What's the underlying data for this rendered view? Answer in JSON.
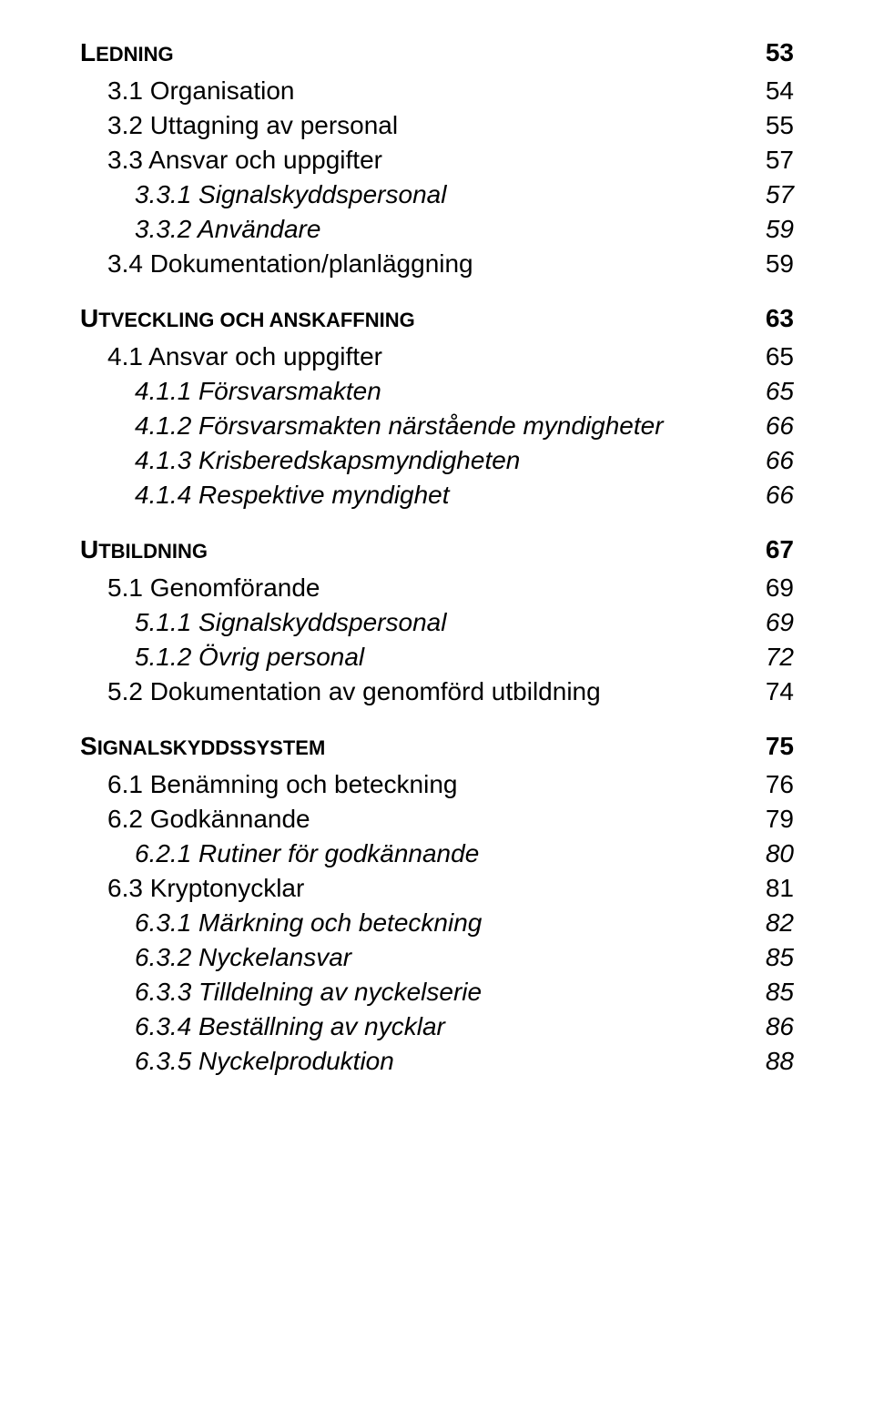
{
  "colors": {
    "text": "#000000",
    "background": "#ffffff"
  },
  "typography": {
    "font_family": "Arial",
    "section_size_pt": 21,
    "sub_size_pt": 21,
    "subsub_size_pt": 21,
    "smallcaps_rest_pt": 17
  },
  "toc": [
    {
      "type": "section",
      "first_letter": "L",
      "rest": "EDNING",
      "page": "53",
      "children": [
        {
          "type": "sub",
          "label": "3.1 Organisation",
          "page": "54"
        },
        {
          "type": "sub",
          "label": "3.2 Uttagning av personal",
          "page": "55"
        },
        {
          "type": "sub",
          "label": "3.3 Ansvar och uppgifter",
          "page": "57"
        },
        {
          "type": "subsub",
          "label": "3.3.1 Signalskyddspersonal",
          "page": "57"
        },
        {
          "type": "subsub",
          "label": "3.3.2 Användare",
          "page": "59"
        },
        {
          "type": "sub",
          "label": "3.4 Dokumentation/planläggning",
          "page": "59"
        }
      ]
    },
    {
      "type": "section",
      "first_letter": "U",
      "rest": "TVECKLING OCH ANSKAFFNING",
      "page": "63",
      "children": [
        {
          "type": "sub",
          "label": "4.1 Ansvar och uppgifter",
          "page": "65"
        },
        {
          "type": "subsub",
          "label": "4.1.1 Försvarsmakten",
          "page": "65"
        },
        {
          "type": "subsub",
          "label": "4.1.2 Försvarsmakten närstående myndigheter",
          "page": "66"
        },
        {
          "type": "subsub",
          "label": "4.1.3 Krisberedskapsmyndigheten",
          "page": "66"
        },
        {
          "type": "subsub",
          "label": "4.1.4 Respektive myndighet",
          "page": "66"
        }
      ]
    },
    {
      "type": "section",
      "first_letter": "U",
      "rest": "TBILDNING",
      "page": "67",
      "children": [
        {
          "type": "sub",
          "label": "5.1 Genomförande",
          "page": "69"
        },
        {
          "type": "subsub",
          "label": "5.1.1 Signalskyddspersonal",
          "page": "69"
        },
        {
          "type": "subsub",
          "label": "5.1.2 Övrig personal",
          "page": "72"
        },
        {
          "type": "sub",
          "label": "5.2 Dokumentation av genomförd utbildning",
          "page": "74"
        }
      ]
    },
    {
      "type": "section",
      "first_letter": "S",
      "rest": "IGNALSKYDDSSYSTEM",
      "page": "75",
      "children": [
        {
          "type": "sub",
          "label": "6.1 Benämning och beteckning",
          "page": "76"
        },
        {
          "type": "sub",
          "label": "6.2 Godkännande",
          "page": "79"
        },
        {
          "type": "subsub",
          "label": "6.2.1 Rutiner för godkännande",
          "page": "80"
        },
        {
          "type": "sub",
          "label": "6.3 Kryptonycklar",
          "page": "81"
        },
        {
          "type": "subsub",
          "label": "6.3.1 Märkning och beteckning",
          "page": "82"
        },
        {
          "type": "subsub",
          "label": "6.3.2 Nyckelansvar",
          "page": "85"
        },
        {
          "type": "subsub",
          "label": "6.3.3 Tilldelning av nyckelserie",
          "page": "85"
        },
        {
          "type": "subsub",
          "label": "6.3.4 Beställning av nycklar",
          "page": "86"
        },
        {
          "type": "subsub",
          "label": "6.3.5 Nyckelproduktion",
          "page": "88"
        }
      ]
    }
  ]
}
